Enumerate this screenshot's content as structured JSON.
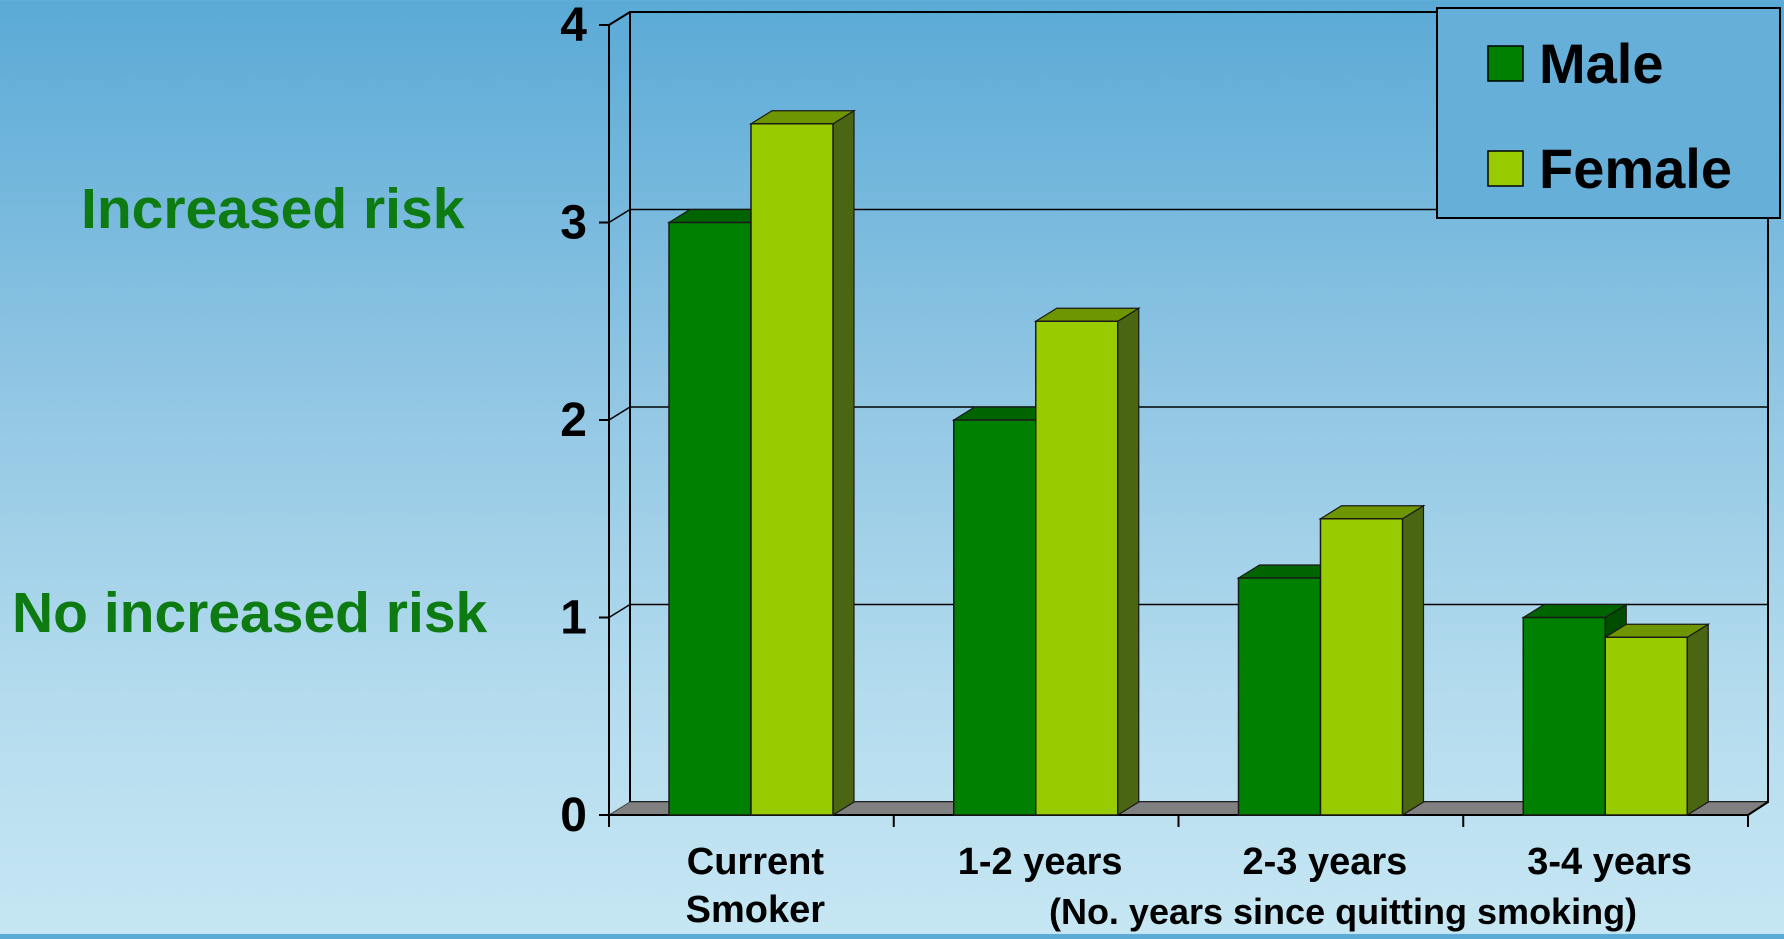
{
  "side_labels": {
    "increased": "Increased risk",
    "no_increased": "No increased risk"
  },
  "chart_data": {
    "type": "bar",
    "categories": [
      [
        "Current",
        "Smoker"
      ],
      [
        "1-2 years"
      ],
      [
        "2-3 years"
      ],
      [
        "3-4 years"
      ]
    ],
    "xlabel": "(No. years since quitting smoking)",
    "ylabel": "",
    "ylim": [
      0,
      4
    ],
    "yticks": [
      "0",
      "1",
      "2",
      "3",
      "4"
    ],
    "grid": true,
    "legend_position": "top-right",
    "series": [
      {
        "name": "Male",
        "values": [
          3.0,
          2.0,
          1.2,
          1.0
        ],
        "color": "#008000",
        "top_color": "#006400",
        "side_color": "#004d00"
      },
      {
        "name": "Female",
        "values": [
          3.5,
          2.5,
          1.5,
          0.9
        ],
        "color": "#99cc00",
        "top_color": "#6e9600",
        "side_color": "#4a6612"
      }
    ],
    "colors": {
      "floor": "#808080",
      "axis": "#000000",
      "gridline": "#000000"
    }
  }
}
